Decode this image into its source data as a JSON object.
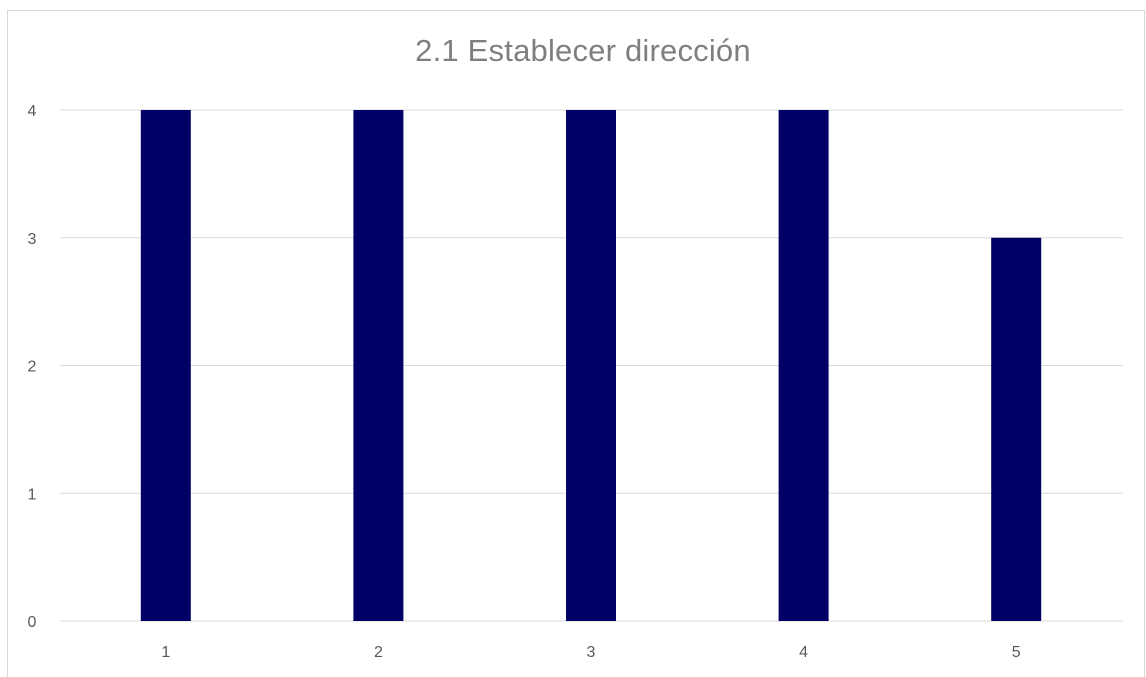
{
  "chart_data": {
    "type": "bar",
    "title": "2.1 Establecer dirección",
    "categories": [
      "1",
      "2",
      "3",
      "4",
      "5"
    ],
    "values": [
      4,
      4,
      4,
      4,
      3
    ],
    "ylim": [
      0,
      4
    ],
    "yticks": [
      0,
      1,
      2,
      3,
      4
    ],
    "xlabel": "",
    "ylabel": "",
    "grid": true,
    "legend": "none",
    "colors": {
      "bar": "#000066",
      "grid": "#d9d9d9",
      "title": "#7f7f7f",
      "tick": "#595959"
    }
  }
}
